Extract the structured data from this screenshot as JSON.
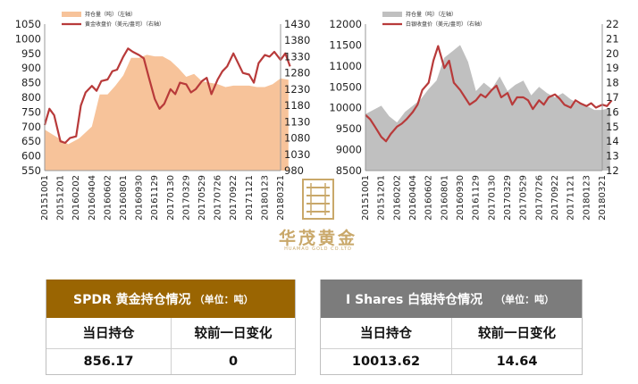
{
  "chart_data": [
    {
      "type": "area",
      "legend": {
        "placement": "top-left",
        "entries": [
          "持仓量（吨）（左轴）",
          "黄金收盘价（美元/盎司）（右轴）"
        ]
      },
      "x_tick_labels": [
        "20151001",
        "20151201",
        "20160202",
        "20160404",
        "20160602",
        "20160801",
        "20160930",
        "20161129",
        "20170130",
        "20170329",
        "20170529",
        "20170726",
        "20170922",
        "20171121",
        "20180123",
        "20180321"
      ],
      "ylim_left": [
        550,
        1050
      ],
      "yticks_left": [
        "550",
        "600",
        "650",
        "700",
        "750",
        "800",
        "850",
        "900",
        "950",
        "1000",
        "1050"
      ],
      "ylim_right": [
        980,
        1430
      ],
      "yticks_right": [
        "980",
        "1030",
        "1080",
        "1130",
        "1180",
        "1230",
        "1280",
        "1330",
        "1380",
        "1430"
      ],
      "series": [
        {
          "name": "持仓量（吨）（左轴）",
          "kind": "area",
          "axis": "left",
          "color": "#f7c39a",
          "x": [
            0,
            1.5,
            2.2,
            3,
            3.5,
            4,
            4.5,
            5,
            5.5,
            6,
            6.5,
            7,
            7.5,
            8,
            8.5,
            9,
            9.5,
            10,
            10.5,
            11,
            11.5,
            12,
            12.5,
            13,
            13.5,
            14,
            14.5,
            15,
            15.5
          ],
          "values": [
            690,
            640,
            660,
            700,
            810,
            810,
            840,
            875,
            935,
            935,
            945,
            940,
            940,
            925,
            900,
            870,
            880,
            855,
            850,
            845,
            835,
            840,
            840,
            840,
            835,
            835,
            845,
            865,
            860
          ]
        },
        {
          "name": "黄金收盘价（美元/盎司）（右轴）",
          "kind": "line",
          "axis": "right",
          "color": "#b83a3a",
          "x": [
            0,
            0.3,
            0.6,
            1,
            1.3,
            1.6,
            2,
            2.3,
            2.6,
            3,
            3.3,
            3.6,
            4,
            4.3,
            4.6,
            5,
            5.3,
            5.6,
            6,
            6.3,
            6.6,
            7,
            7.3,
            7.6,
            8,
            8.3,
            8.6,
            9,
            9.3,
            9.6,
            10,
            10.3,
            10.6,
            11,
            11.3,
            11.6,
            12,
            12.3,
            12.6,
            13,
            13.3,
            13.6,
            14,
            14.3,
            14.6,
            15,
            15.3,
            15.6
          ],
          "values": [
            1120,
            1170,
            1150,
            1070,
            1065,
            1080,
            1085,
            1180,
            1220,
            1240,
            1225,
            1255,
            1260,
            1285,
            1290,
            1330,
            1355,
            1345,
            1335,
            1325,
            1270,
            1200,
            1170,
            1185,
            1230,
            1215,
            1250,
            1245,
            1220,
            1230,
            1255,
            1265,
            1215,
            1260,
            1285,
            1300,
            1340,
            1310,
            1280,
            1275,
            1250,
            1310,
            1335,
            1330,
            1345,
            1320,
            1340,
            1300
          ]
        }
      ]
    },
    {
      "type": "area",
      "legend": {
        "placement": "top-left",
        "entries": [
          "持仓量（吨）（左轴）",
          "白银收盘价（美元/盎司）（右轴）"
        ]
      },
      "x_tick_labels": [
        "20151001",
        "20151201",
        "20160202",
        "20160404",
        "20160602",
        "20160801",
        "20160930",
        "20161129",
        "20170130",
        "20170329",
        "20170529",
        "20170726",
        "20170922",
        "20171121",
        "20180123",
        "20180321"
      ],
      "ylim_left": [
        8500,
        12000
      ],
      "yticks_left": [
        "8500",
        "9000",
        "9500",
        "10000",
        "10500",
        "11000",
        "11500",
        "12000"
      ],
      "ylim_right": [
        12,
        22
      ],
      "yticks_right": [
        "12",
        "13",
        "14",
        "15",
        "16",
        "17",
        "18",
        "19",
        "20",
        "21",
        "22"
      ],
      "series": [
        {
          "name": "持仓量（吨）（左轴）",
          "kind": "area",
          "axis": "left",
          "color": "#c0c0c0",
          "x": [
            0,
            1,
            1.5,
            2,
            2.5,
            3,
            3.5,
            4,
            4.5,
            5,
            5.5,
            6,
            6.5,
            7,
            7.5,
            8,
            8.5,
            9,
            9.5,
            10,
            10.5,
            11,
            11.5,
            12,
            12.5,
            13,
            13.5,
            14,
            14.5,
            15,
            15.5
          ],
          "values": [
            9850,
            10050,
            9800,
            9650,
            9900,
            10050,
            10200,
            10450,
            10650,
            11200,
            11350,
            11500,
            11100,
            10400,
            10600,
            10450,
            10750,
            10400,
            10550,
            10650,
            10300,
            10500,
            10350,
            10250,
            10350,
            10200,
            10100,
            10050,
            9950,
            9950,
            10000
          ]
        },
        {
          "name": "白银收盘价（美元/盎司）（右轴）",
          "kind": "line",
          "axis": "right",
          "color": "#b83a3a",
          "x": [
            0,
            0.3,
            0.6,
            1,
            1.3,
            1.6,
            2,
            2.3,
            2.6,
            3,
            3.3,
            3.6,
            4,
            4.3,
            4.6,
            5,
            5.3,
            5.6,
            6,
            6.3,
            6.6,
            7,
            7.3,
            7.6,
            8,
            8.3,
            8.6,
            9,
            9.3,
            9.6,
            10,
            10.3,
            10.6,
            11,
            11.3,
            11.6,
            12,
            12.3,
            12.6,
            13,
            13.3,
            13.6,
            14,
            14.3,
            14.6,
            15,
            15.3,
            15.6
          ],
          "values": [
            15.8,
            15.5,
            15,
            14.3,
            14.0,
            14.5,
            15.0,
            15.2,
            15.5,
            16.0,
            16.5,
            17.5,
            18.0,
            19.5,
            20.5,
            19.0,
            19.5,
            18.0,
            17.5,
            17.0,
            16.5,
            16.8,
            17.2,
            17.0,
            17.5,
            17.8,
            17.0,
            17.3,
            16.5,
            17.0,
            17.0,
            16.8,
            16.2,
            16.8,
            16.5,
            17.0,
            17.2,
            16.9,
            16.5,
            16.3,
            16.8,
            16.6,
            16.4,
            16.6,
            16.3,
            16.5,
            16.4,
            16.8
          ]
        }
      ]
    }
  ],
  "logo": {
    "name": "华茂黄金",
    "sub": "HUAMAO GOLD CO.LTD"
  },
  "panels": {
    "gold": {
      "title": "SPDR 黄金持仓情况",
      "unit": "（单位：吨）",
      "col1_header": "当日持仓",
      "col2_header": "较前一日变化",
      "holding": "856.17",
      "change": "0"
    },
    "silver": {
      "title": "I Shares 白银持仓情况",
      "unit": "（单位：吨）",
      "col1_header": "当日持仓",
      "col2_header": "较前一日变化",
      "holding": "10013.62",
      "change": "14.64"
    }
  }
}
